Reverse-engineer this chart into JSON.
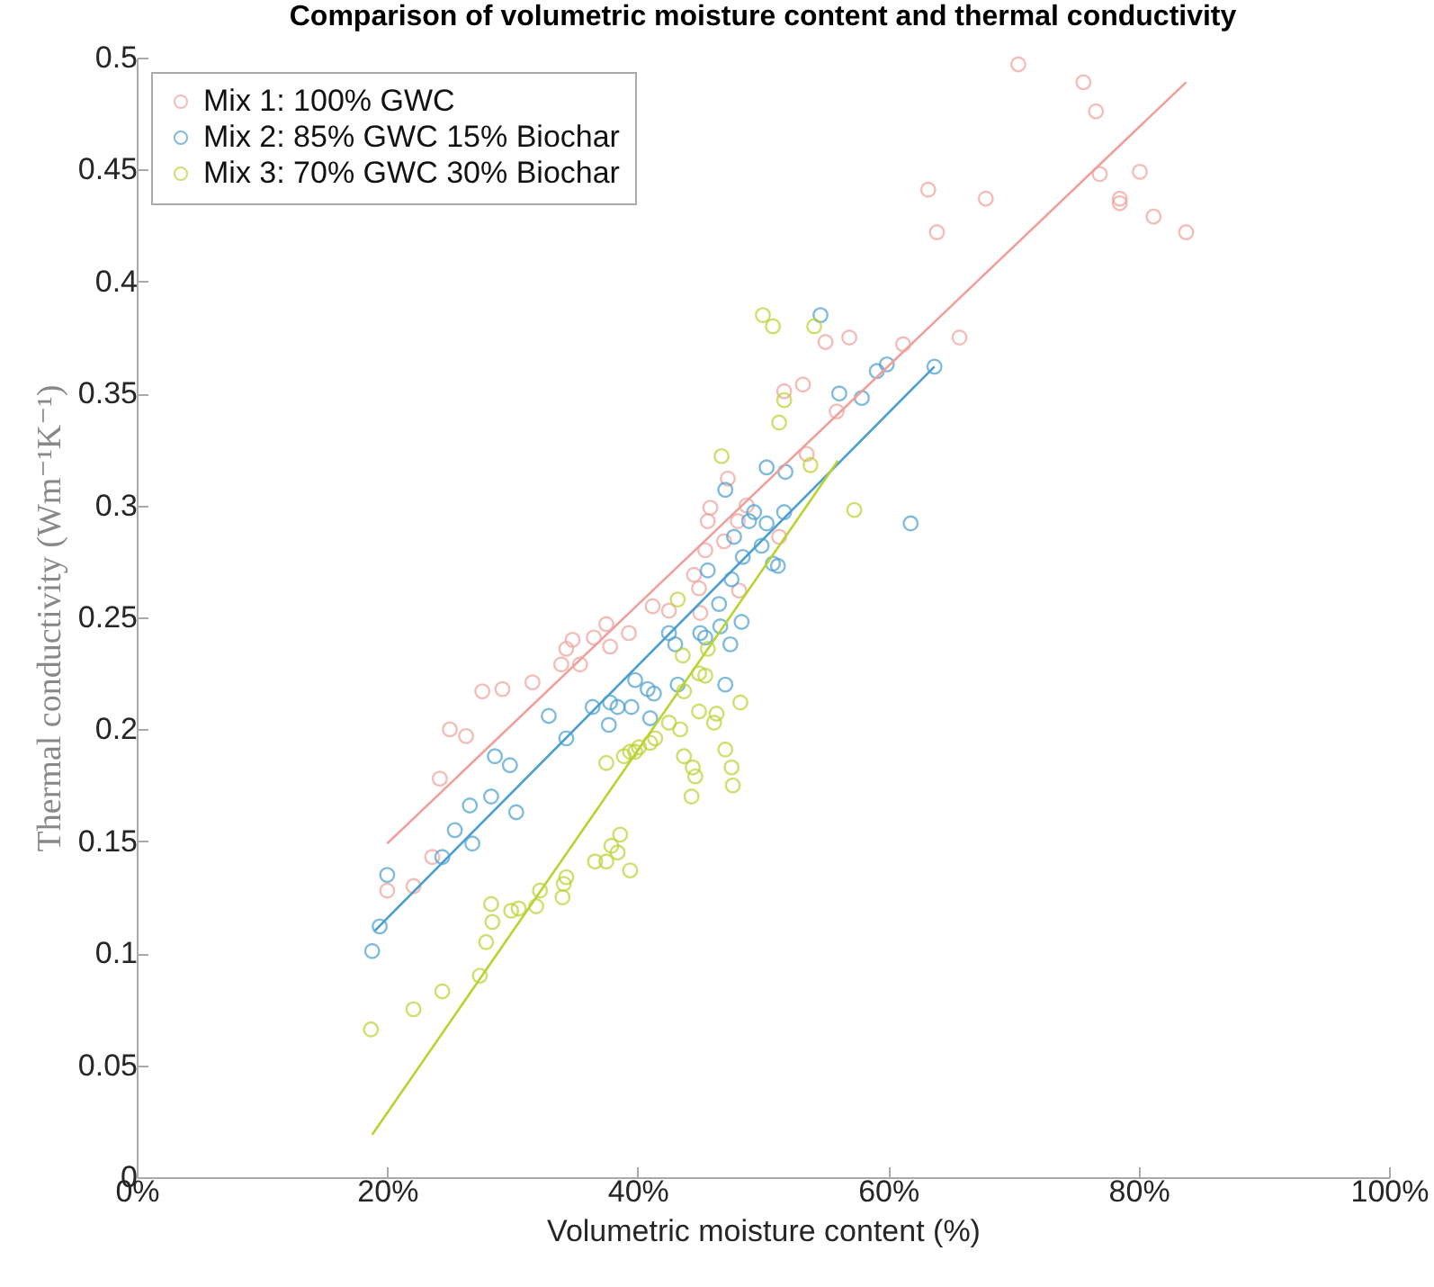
{
  "chart_data": {
    "type": "scatter",
    "title": "Comparison of volumetric moisture content and thermal conductivity",
    "xlabel": "Volumetric moisture content (%)",
    "ylabel": "Thermal conductivity (Wm⁻¹K⁻¹)",
    "xlim": [
      0,
      100
    ],
    "xticks": [
      {
        "value": 0,
        "label": "0%"
      },
      {
        "value": 20,
        "label": "20%"
      },
      {
        "value": 40,
        "label": "40%"
      },
      {
        "value": 60,
        "label": "60%"
      },
      {
        "value": 80,
        "label": "80%"
      },
      {
        "value": 100,
        "label": "100%"
      }
    ],
    "ylim": [
      0,
      0.5
    ],
    "yticks": [
      0,
      0.05,
      0.1,
      0.15,
      0.2,
      0.25,
      0.3,
      0.35,
      0.4,
      0.45,
      0.5
    ],
    "marker": "circle",
    "legend": "top left",
    "series": [
      {
        "name": "Mix 1: 100% GWC",
        "color": "#f0a09a",
        "x": [
          20.0,
          22.1,
          23.6,
          24.2,
          25.0,
          26.3,
          27.6,
          29.2,
          31.6,
          33.9,
          34.3,
          34.8,
          35.4,
          36.5,
          37.5,
          37.8,
          39.3,
          41.2,
          42.5,
          55.0,
          56.9,
          61.2,
          65.7,
          51.7,
          53.2,
          55.9,
          53.5,
          47.2,
          45.8,
          45.6,
          48.7,
          48.0,
          51.3,
          46.9,
          45.4,
          44.5,
          44.9,
          48.1,
          45.0,
          70.4,
          75.6,
          76.6,
          63.2,
          67.8,
          63.9,
          76.9,
          80.1,
          78.5,
          78.5,
          81.2,
          83.8
        ],
        "values": [
          0.128,
          0.13,
          0.143,
          0.178,
          0.2,
          0.197,
          0.217,
          0.218,
          0.221,
          0.229,
          0.236,
          0.24,
          0.229,
          0.241,
          0.247,
          0.237,
          0.243,
          0.255,
          0.253,
          0.373,
          0.375,
          0.372,
          0.375,
          0.351,
          0.354,
          0.342,
          0.323,
          0.312,
          0.299,
          0.293,
          0.3,
          0.293,
          0.286,
          0.284,
          0.28,
          0.269,
          0.263,
          0.262,
          0.252,
          0.497,
          0.489,
          0.476,
          0.441,
          0.437,
          0.422,
          0.448,
          0.449,
          0.437,
          0.435,
          0.429,
          0.422
        ]
      },
      {
        "name": "Mix 2: 85% GWC 15% Biochar",
        "color": "#4a9fd0",
        "x": [
          20.0,
          19.4,
          18.8,
          24.4,
          25.4,
          26.8,
          26.6,
          28.3,
          28.6,
          29.8,
          30.3,
          32.9,
          34.3,
          36.4,
          37.8,
          37.7,
          38.4,
          39.5,
          39.8,
          40.8,
          41.3,
          41.0,
          42.5,
          43.0,
          43.2,
          45.0,
          45.4,
          46.6,
          47.0,
          47.4,
          48.3,
          54.6,
          59.1,
          59.9,
          63.7,
          56.1,
          57.9,
          50.3,
          51.8,
          47.0,
          49.3,
          48.9,
          51.7,
          50.3,
          47.7,
          49.9,
          48.4,
          50.8,
          51.2,
          45.6,
          47.5,
          46.5,
          61.8
        ],
        "values": [
          0.135,
          0.112,
          0.101,
          0.143,
          0.155,
          0.149,
          0.166,
          0.17,
          0.188,
          0.184,
          0.163,
          0.206,
          0.196,
          0.21,
          0.212,
          0.202,
          0.21,
          0.21,
          0.222,
          0.218,
          0.216,
          0.205,
          0.243,
          0.238,
          0.22,
          0.243,
          0.241,
          0.246,
          0.22,
          0.238,
          0.248,
          0.385,
          0.36,
          0.363,
          0.362,
          0.35,
          0.348,
          0.317,
          0.315,
          0.307,
          0.297,
          0.293,
          0.297,
          0.292,
          0.286,
          0.282,
          0.277,
          0.274,
          0.273,
          0.271,
          0.267,
          0.256,
          0.292
        ]
      },
      {
        "name": "Mix 3: 70% GWC 30% Biochar",
        "color": "#b8d430",
        "x": [
          18.7,
          22.1,
          24.4,
          27.4,
          27.9,
          28.4,
          28.3,
          29.9,
          30.5,
          31.9,
          32.2,
          34.0,
          34.1,
          34.3,
          36.6,
          37.5,
          37.9,
          38.4,
          38.6,
          39.4,
          37.5,
          38.9,
          39.4,
          39.8,
          40.1,
          41.0,
          41.4,
          42.5,
          43.4,
          43.7,
          44.4,
          44.6,
          44.3,
          44.9,
          46.1,
          46.3,
          47.0,
          47.5,
          47.6,
          50.0,
          50.8,
          54.1,
          51.7,
          51.3,
          46.7,
          53.8,
          57.3,
          43.2,
          43.6,
          45.6,
          44.9,
          45.4,
          43.7,
          48.2
        ],
        "values": [
          0.066,
          0.075,
          0.083,
          0.09,
          0.105,
          0.114,
          0.122,
          0.119,
          0.12,
          0.121,
          0.128,
          0.125,
          0.131,
          0.134,
          0.141,
          0.141,
          0.148,
          0.145,
          0.153,
          0.137,
          0.185,
          0.188,
          0.19,
          0.19,
          0.192,
          0.194,
          0.196,
          0.203,
          0.2,
          0.188,
          0.183,
          0.179,
          0.17,
          0.208,
          0.203,
          0.207,
          0.191,
          0.183,
          0.175,
          0.385,
          0.38,
          0.38,
          0.347,
          0.337,
          0.322,
          0.318,
          0.298,
          0.258,
          0.233,
          0.236,
          0.225,
          0.224,
          0.217,
          0.212
        ]
      },
      {
        "type": "line",
        "marker": "none",
        "color": "#f0a09a",
        "x": [
          20.0,
          83.8
        ],
        "values": [
          0.149,
          0.489
        ]
      },
      {
        "type": "line",
        "marker": "none",
        "color": "#4a9fd0",
        "x": [
          19.0,
          63.7
        ],
        "values": [
          0.11,
          0.362
        ]
      },
      {
        "type": "line",
        "marker": "none",
        "color": "#b8d430",
        "x": [
          18.8,
          56.0
        ],
        "values": [
          0.019,
          0.32
        ]
      }
    ]
  }
}
